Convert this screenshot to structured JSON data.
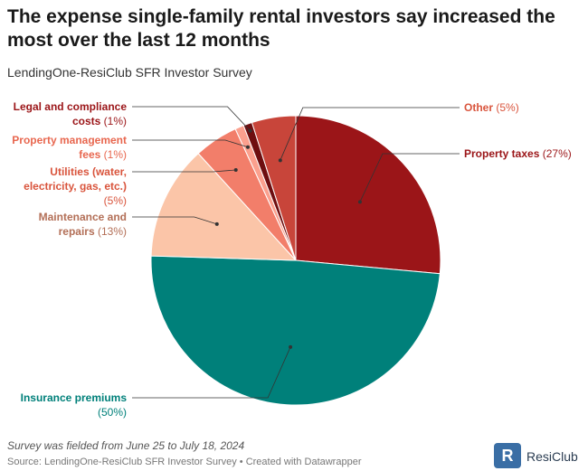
{
  "chart_data": {
    "type": "pie",
    "title": "The expense single-family rental investors say increased the most over the last 12 months",
    "subtitle": "LendingOne-ResiClub SFR Investor Survey",
    "categories": [
      "Property taxes",
      "Insurance premiums",
      "Maintenance and repairs",
      "Utilities (water, electricity, gas, etc.)",
      "Property management fees",
      "Legal and compliance costs",
      "Other"
    ],
    "values": [
      27,
      50,
      13,
      5,
      1,
      1,
      5
    ],
    "value_labels": [
      "(27%)",
      "(50%)",
      "(13%)",
      "(5%)",
      "(1%)",
      "(1%)",
      "(5%)"
    ],
    "colors": [
      "#9b1518",
      "#00807a",
      "#fbc5a8",
      "#f27e6a",
      "#fba08e",
      "#6e0e10",
      "#c8453a"
    ],
    "label_colors": [
      "#9b1518",
      "#00807a",
      "#b36f57",
      "#d9543c",
      "#e8674f",
      "#9b1518",
      "#d9543c"
    ]
  },
  "note": "Survey was fielded from June 25 to July 18, 2024",
  "source": "Source: LendingOne-ResiClub SFR Investor Survey • Created with Datawrapper",
  "logo": "ResiClub"
}
